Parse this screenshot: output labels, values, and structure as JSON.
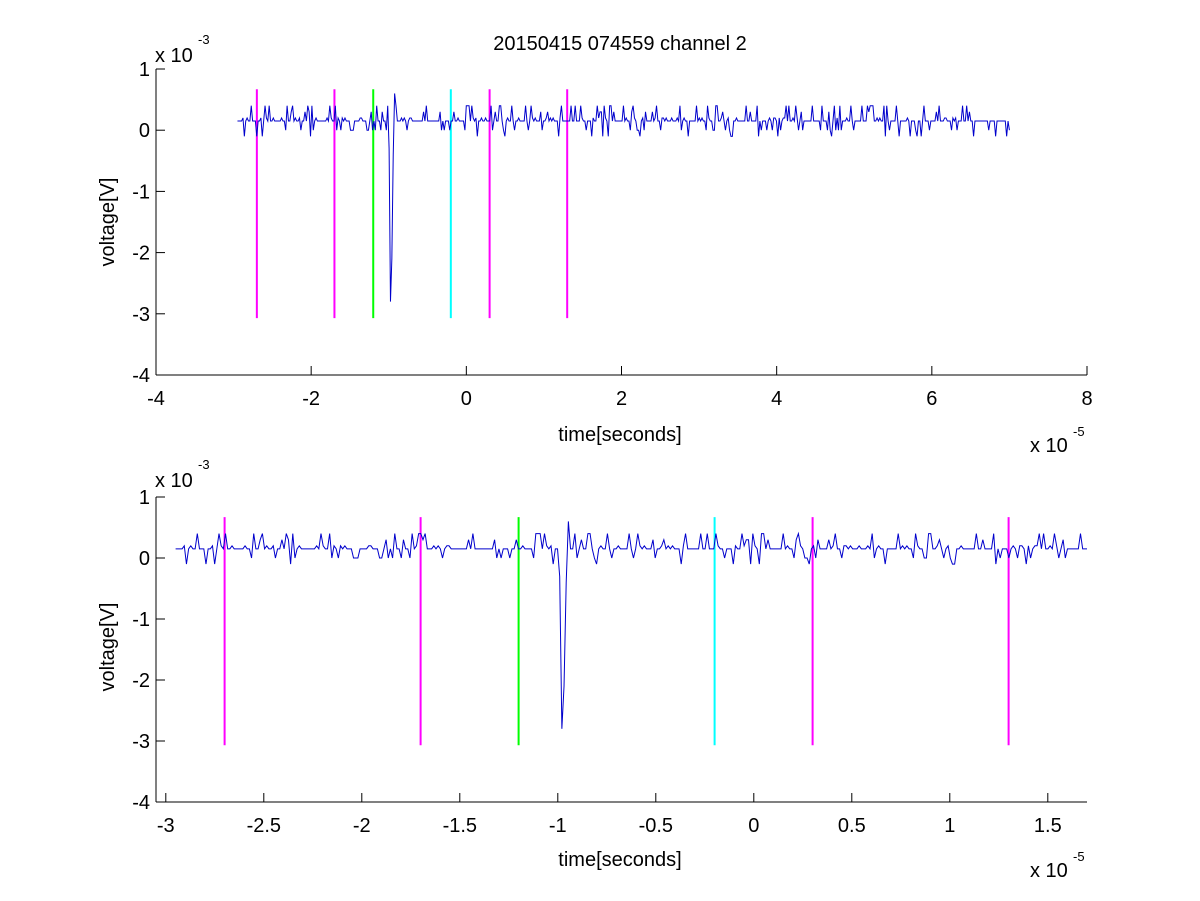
{
  "chart_data": [
    {
      "type": "line",
      "title": "20150415 074559 channel 2",
      "xlabel": "time[seconds]",
      "ylabel": "voltage[V]",
      "x_multiplier": "x 10",
      "x_multiplier_exp": "-5",
      "y_multiplier": "x 10",
      "y_multiplier_exp": "-3",
      "xlim": [
        -4,
        8
      ],
      "ylim": [
        -4,
        1
      ],
      "xticks": [
        -4,
        -2,
        0,
        2,
        4,
        6,
        8
      ],
      "xtick_labels": [
        "-4",
        "-2",
        "0",
        "2",
        "4",
        "6",
        "8"
      ],
      "yticks": [
        -4,
        -3,
        -2,
        -1,
        0,
        1
      ],
      "ytick_labels": [
        "-4",
        "-3",
        "-2",
        "-1",
        "0",
        "1"
      ],
      "grid": false,
      "series": [
        {
          "color": "#0000cc",
          "x_range": [
            -2.95,
            7.0
          ],
          "baseline": 0.15,
          "noise_amplitude": 0.25,
          "spike": {
            "x": -0.98,
            "min": -2.8
          }
        }
      ],
      "markers": [
        {
          "x": -2.7,
          "color": "#ff00ff",
          "top": 0.67,
          "bottom": -3.07
        },
        {
          "x": -1.7,
          "color": "#ff00ff",
          "top": 0.67,
          "bottom": -3.07
        },
        {
          "x": -1.2,
          "color": "#00ff00",
          "top": 0.67,
          "bottom": -3.07
        },
        {
          "x": -0.2,
          "color": "#00ffff",
          "top": 0.67,
          "bottom": -3.07
        },
        {
          "x": 0.3,
          "color": "#ff00ff",
          "top": 0.67,
          "bottom": -3.07
        },
        {
          "x": 1.3,
          "color": "#ff00ff",
          "top": 0.67,
          "bottom": -3.07
        }
      ]
    },
    {
      "type": "line",
      "title": "",
      "xlabel": "time[seconds]",
      "ylabel": "voltage[V]",
      "x_multiplier": "x 10",
      "x_multiplier_exp": "-5",
      "y_multiplier": "x 10",
      "y_multiplier_exp": "-3",
      "xlim": [
        -3.05,
        1.7
      ],
      "ylim": [
        -4,
        1
      ],
      "xticks": [
        -3,
        -2.5,
        -2,
        -1.5,
        -1,
        -0.5,
        0,
        0.5,
        1,
        1.5
      ],
      "xtick_labels": [
        "-3",
        "-2.5",
        "-2",
        "-1.5",
        "-1",
        "-0.5",
        "0",
        "0.5",
        "1",
        "1.5"
      ],
      "yticks": [
        -4,
        -3,
        -2,
        -1,
        0,
        1
      ],
      "ytick_labels": [
        "-4",
        "-3",
        "-2",
        "-1",
        "0",
        "1"
      ],
      "grid": false,
      "series": [
        {
          "color": "#0000cc",
          "x_range": [
            -2.95,
            1.7
          ],
          "baseline": 0.15,
          "noise_amplitude": 0.25,
          "spike": {
            "x": -0.98,
            "min": -2.8
          }
        }
      ],
      "markers": [
        {
          "x": -2.7,
          "color": "#ff00ff",
          "top": 0.67,
          "bottom": -3.07
        },
        {
          "x": -1.7,
          "color": "#ff00ff",
          "top": 0.67,
          "bottom": -3.07
        },
        {
          "x": -1.2,
          "color": "#00ff00",
          "top": 0.67,
          "bottom": -3.07
        },
        {
          "x": -0.2,
          "color": "#00ffff",
          "top": 0.67,
          "bottom": -3.07
        },
        {
          "x": 0.3,
          "color": "#ff00ff",
          "top": 0.67,
          "bottom": -3.07
        },
        {
          "x": 1.3,
          "color": "#ff00ff",
          "top": 0.67,
          "bottom": -3.07
        }
      ]
    }
  ]
}
